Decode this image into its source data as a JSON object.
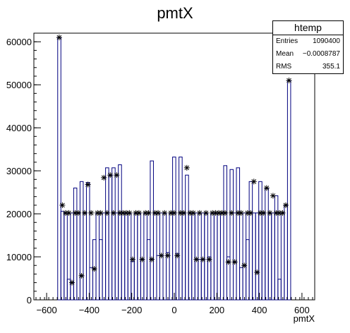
{
  "chart_data": {
    "type": "histogram",
    "title": "pmtX",
    "xlabel": "pmtX",
    "ylabel": "",
    "xlim": [
      -660,
      660
    ],
    "ylim": [
      0,
      62000
    ],
    "xticks": [
      -600,
      -400,
      -200,
      0,
      200,
      400,
      600
    ],
    "yticks": [
      0,
      10000,
      20000,
      30000,
      40000,
      50000,
      60000
    ],
    "grid": false,
    "colors": {
      "histogram": "#00007f",
      "markers": "#000000",
      "axes": "#000000"
    },
    "bins": [
      [
        -548,
        -533,
        61000
      ],
      [
        -533,
        -518,
        20600
      ],
      [
        -518,
        -503,
        20200
      ],
      [
        -503,
        -488,
        4800
      ],
      [
        -488,
        -473,
        20200
      ],
      [
        -473,
        -458,
        26000
      ],
      [
        -458,
        -443,
        20200
      ],
      [
        -443,
        -428,
        27500
      ],
      [
        -428,
        -413,
        20200
      ],
      [
        -413,
        -398,
        27300
      ],
      [
        -398,
        -383,
        7500
      ],
      [
        -383,
        -368,
        14000
      ],
      [
        -368,
        -353,
        20200
      ],
      [
        -353,
        -338,
        14000
      ],
      [
        -338,
        -323,
        20200
      ],
      [
        -323,
        -308,
        30700
      ],
      [
        -308,
        -293,
        28800
      ],
      [
        -293,
        -278,
        30700
      ],
      [
        -278,
        -263,
        20200
      ],
      [
        -263,
        -248,
        31400
      ],
      [
        -248,
        -233,
        20200
      ],
      [
        -233,
        -218,
        20200
      ],
      [
        -218,
        -203,
        20200
      ],
      [
        -203,
        -188,
        8900
      ],
      [
        -188,
        -173,
        20200
      ],
      [
        -173,
        -158,
        20200
      ],
      [
        -158,
        -143,
        9400
      ],
      [
        -143,
        -128,
        20200
      ],
      [
        -128,
        -113,
        14000
      ],
      [
        -113,
        -98,
        32300
      ],
      [
        -98,
        -83,
        20200
      ],
      [
        -83,
        -68,
        10300
      ],
      [
        -68,
        -53,
        20200
      ],
      [
        -53,
        -38,
        20200
      ],
      [
        -38,
        -23,
        11000
      ],
      [
        -23,
        -8,
        20200
      ],
      [
        -8,
        7,
        33200
      ],
      [
        7,
        22,
        10800
      ],
      [
        22,
        37,
        33200
      ],
      [
        37,
        52,
        20200
      ],
      [
        52,
        67,
        29000
      ],
      [
        67,
        82,
        20200
      ],
      [
        82,
        97,
        20200
      ],
      [
        97,
        112,
        20200
      ],
      [
        112,
        127,
        9400
      ],
      [
        127,
        142,
        20200
      ],
      [
        142,
        157,
        20200
      ],
      [
        157,
        172,
        10000
      ],
      [
        172,
        187,
        20200
      ],
      [
        187,
        202,
        20200
      ],
      [
        202,
        217,
        20200
      ],
      [
        217,
        232,
        20200
      ],
      [
        232,
        247,
        31200
      ],
      [
        247,
        262,
        10000
      ],
      [
        262,
        277,
        30300
      ],
      [
        277,
        292,
        20200
      ],
      [
        292,
        307,
        30700
      ],
      [
        307,
        322,
        7500
      ],
      [
        322,
        337,
        20200
      ],
      [
        337,
        352,
        14000
      ],
      [
        352,
        367,
        27500
      ],
      [
        367,
        382,
        20200
      ],
      [
        382,
        397,
        20200
      ],
      [
        397,
        412,
        27500
      ],
      [
        412,
        427,
        20200
      ],
      [
        427,
        442,
        26000
      ],
      [
        442,
        457,
        20200
      ],
      [
        457,
        472,
        20200
      ],
      [
        472,
        487,
        24200
      ],
      [
        487,
        502,
        4800
      ],
      [
        502,
        517,
        20200
      ],
      [
        517,
        532,
        22000
      ],
      [
        532,
        547,
        51000
      ]
    ],
    "markers": {
      "x": [
        -541,
        -526,
        -511,
        -496,
        -481,
        -466,
        -451,
        -436,
        -421,
        -406,
        -391,
        -376,
        -361,
        -346,
        -331,
        -316,
        -301,
        -286,
        -271,
        -256,
        -241,
        -226,
        -211,
        -196,
        -181,
        -166,
        -151,
        -136,
        -121,
        -106,
        -91,
        -76,
        -61,
        -46,
        -31,
        -16,
        -1,
        14,
        29,
        44,
        59,
        74,
        89,
        104,
        119,
        134,
        149,
        164,
        179,
        194,
        209,
        224,
        239,
        254,
        269,
        284,
        299,
        314,
        329,
        344,
        359,
        374,
        389,
        404,
        419,
        434,
        449,
        464,
        479,
        494,
        509,
        524,
        539
      ],
      "y": [
        61000,
        22000,
        20200,
        20200,
        4000,
        20200,
        20200,
        5600,
        20200,
        26800,
        20200,
        7200,
        20200,
        20200,
        28400,
        20200,
        29000,
        20200,
        29000,
        20200,
        20200,
        20200,
        20200,
        9400,
        20200,
        20200,
        9400,
        20200,
        20200,
        9400,
        20200,
        20200,
        10300,
        20200,
        10300,
        20200,
        20200,
        10300,
        20200,
        20200,
        30700,
        20200,
        20200,
        9400,
        20200,
        9400,
        20200,
        9400,
        20200,
        20200,
        20200,
        20200,
        20200,
        8800,
        20200,
        8800,
        20200,
        20200,
        8000,
        20200,
        20200,
        27500,
        6400,
        20200,
        20200,
        26000,
        20200,
        24200,
        20200,
        20200,
        20200,
        22000,
        51000
      ]
    }
  },
  "stats": {
    "title": "htemp",
    "rows": [
      {
        "label": "Entries",
        "value": "1090400"
      },
      {
        "label": "Mean",
        "value": "−0.0008787"
      },
      {
        "label": "RMS",
        "value": "355.1"
      }
    ]
  }
}
